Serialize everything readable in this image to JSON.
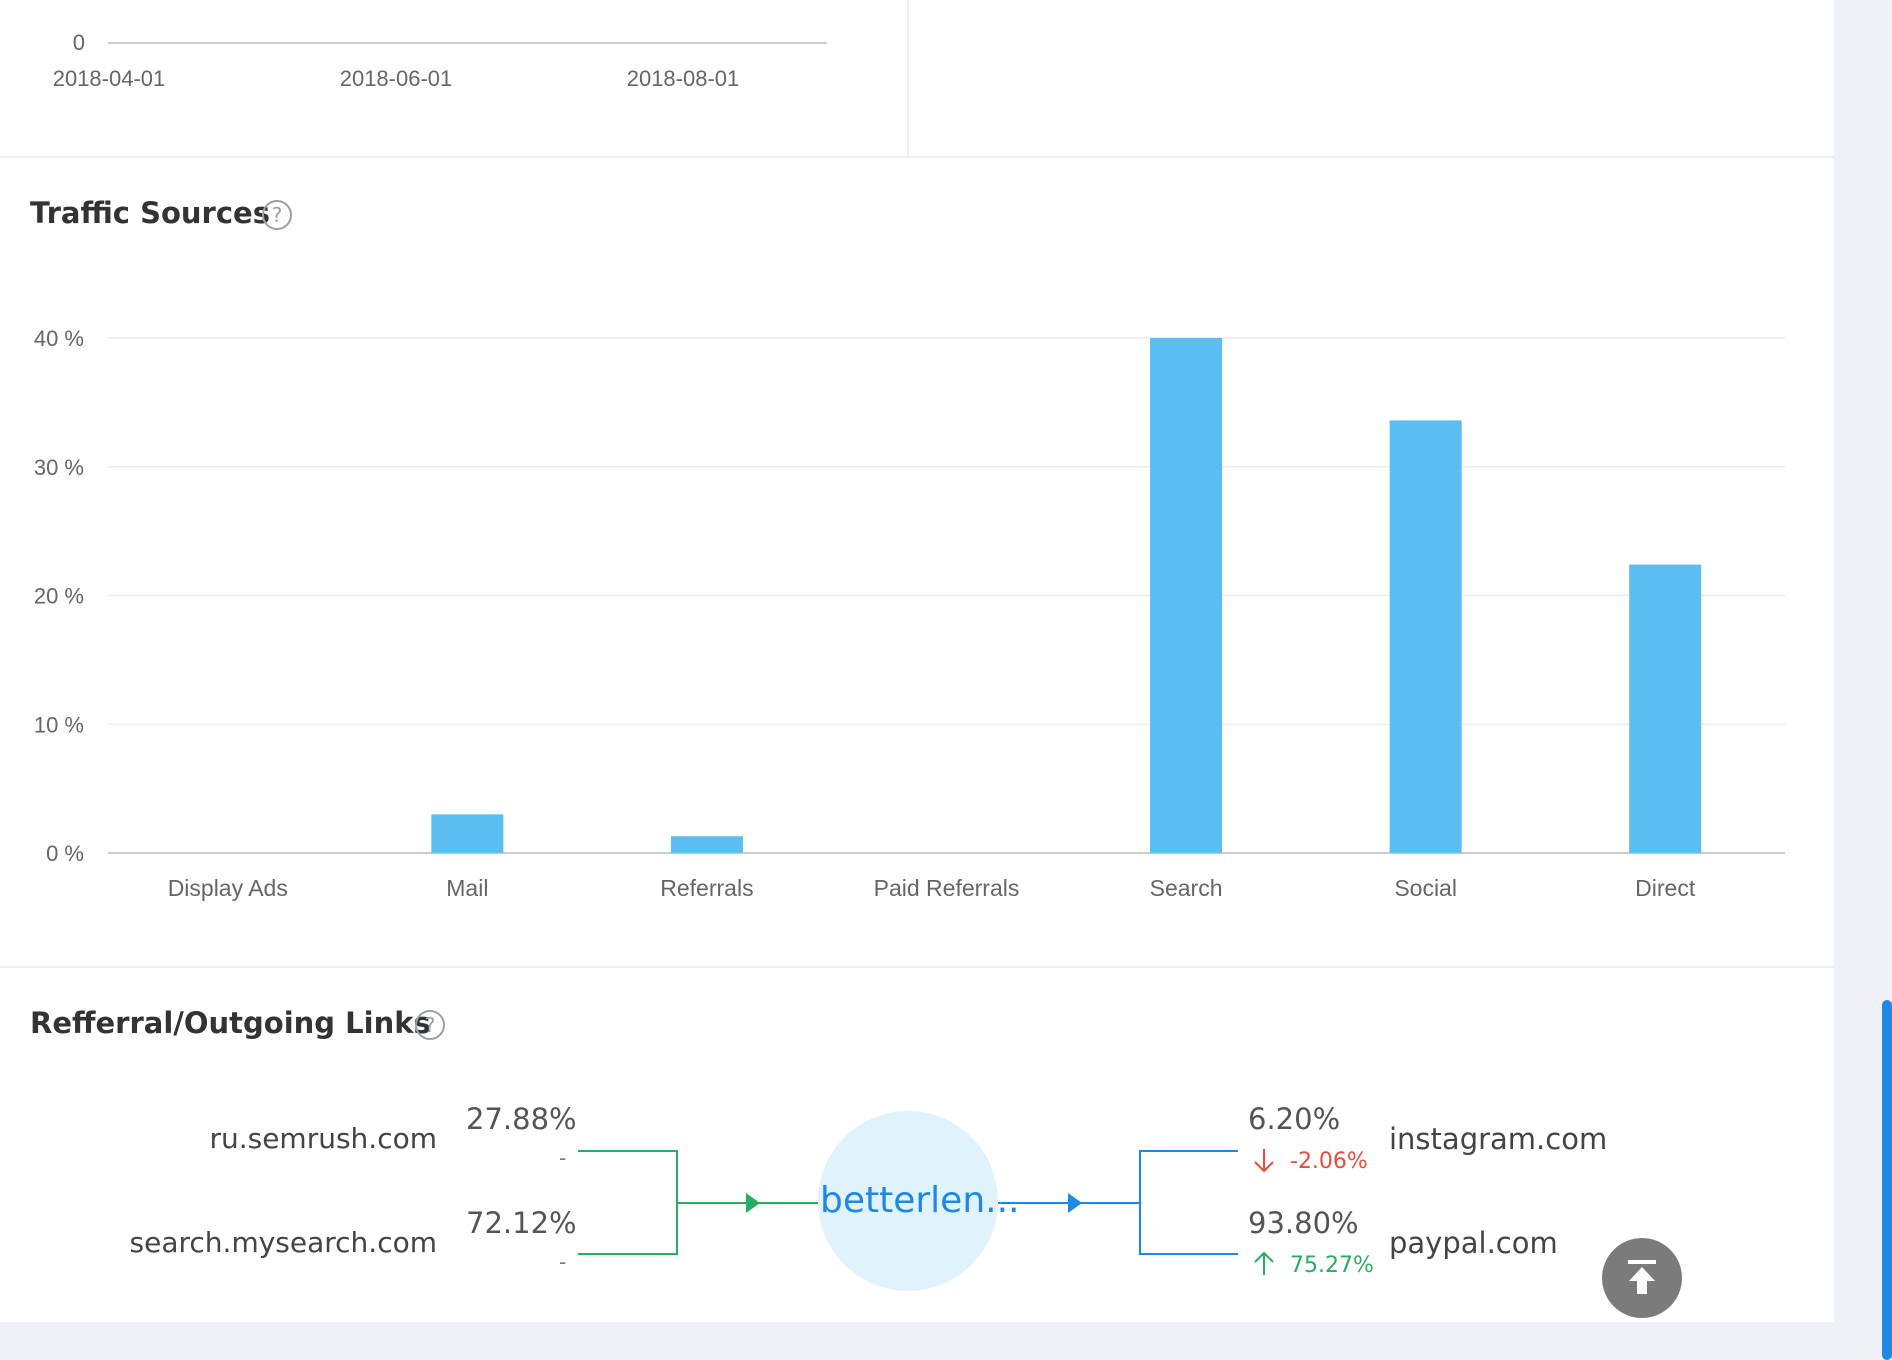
{
  "top_chart": {
    "y_tick": "0",
    "x_ticks": [
      "2018-04-01",
      "2018-06-01",
      "2018-08-01"
    ]
  },
  "traffic_sources": {
    "title": "Traffic Sources",
    "help_icon": "question-circle-icon",
    "chart_data": {
      "type": "bar",
      "categories": [
        "Display Ads",
        "Mail",
        "Referrals",
        "Paid Referrals",
        "Search",
        "Social",
        "Direct"
      ],
      "values": [
        0,
        3.0,
        1.3,
        0,
        40.0,
        33.6,
        22.4
      ],
      "yticks": [
        "0 %",
        "10 %",
        "20 %",
        "30 %",
        "40 %"
      ],
      "ytick_values": [
        0,
        10,
        20,
        30,
        40
      ],
      "ylim": [
        0,
        40
      ],
      "grid": true,
      "bar_color": "#5bbdf0"
    }
  },
  "referral_links": {
    "title": "Refferral/Outgoing Links",
    "help_icon": "question-circle-icon",
    "center_label": "betterlen...",
    "referrers": [
      {
        "name": "ru.semrush.com",
        "percent": "27.88%",
        "change": "-"
      },
      {
        "name": "search.mysearch.com",
        "percent": "72.12%",
        "change": "-"
      }
    ],
    "outgoing": [
      {
        "name": "instagram.com",
        "percent": "6.20%",
        "change": "-2.06%",
        "direction": "down",
        "icon": "arrow-down-icon"
      },
      {
        "name": "paypal.com",
        "percent": "93.80%",
        "change": "75.27%",
        "direction": "up",
        "icon": "arrow-up-icon"
      }
    ],
    "colors": {
      "incoming": "#27ae60",
      "outgoing": "#1e88e5",
      "down": "#e74c3c",
      "up": "#27ae60"
    }
  },
  "back_to_top_icon": "arrow-to-top-icon"
}
